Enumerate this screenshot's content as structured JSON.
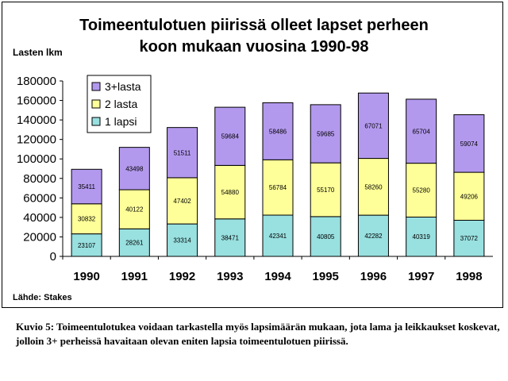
{
  "chart_data": {
    "type": "bar",
    "stacked": true,
    "title": [
      "Toimeentulotuen piirissä olleet lapset perheen",
      "koon mukaan vuosina 1990-98"
    ],
    "ylabel": "Lasten lkm",
    "xlabel": "",
    "ylim": [
      0,
      180000
    ],
    "yticks": [
      0,
      20000,
      40000,
      60000,
      80000,
      100000,
      120000,
      140000,
      160000,
      180000
    ],
    "categories": [
      "1990",
      "1991",
      "1992",
      "1993",
      "1994",
      "1995",
      "1996",
      "1997",
      "1998"
    ],
    "series": [
      {
        "name": "1 lapsi",
        "color": "#99e0e0",
        "values": [
          23107,
          28261,
          33314,
          38471,
          42341,
          40805,
          42282,
          40319,
          37072
        ]
      },
      {
        "name": "2 lasta",
        "color": "#ffff99",
        "values": [
          30832,
          40122,
          47402,
          54880,
          56784,
          55170,
          58260,
          55280,
          49206
        ]
      },
      {
        "name": "3+lasta",
        "color": "#b399ee",
        "values": [
          35411,
          43498,
          51511,
          59684,
          58486,
          59685,
          67071,
          65704,
          59074
        ]
      }
    ],
    "legend_position": "top-left",
    "legend_order": [
      "3+lasta",
      "2 lasta",
      "1 lapsi"
    ],
    "grid": false
  },
  "source": "Lähde: Stakes",
  "caption": "Kuvio 5: Toimeentulotukea voidaan tarkastella myös lapsimäärän mukaan, jota lama ja leikkaukset koskevat, jolloin 3+ perheissä havaitaan olevan eniten lapsia toimeentulotuen piirissä."
}
